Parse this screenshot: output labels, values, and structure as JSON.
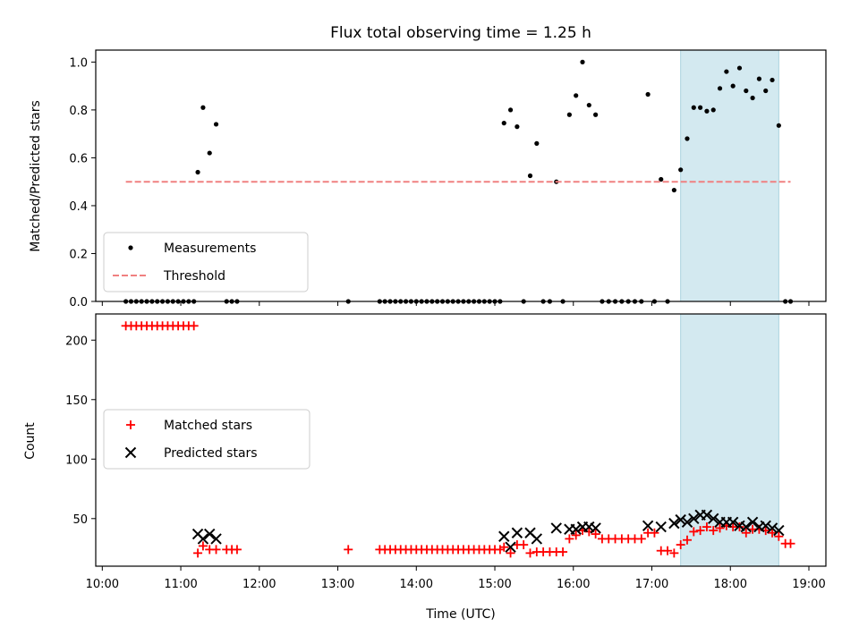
{
  "chart_data": [
    {
      "type": "scatter",
      "panel": "top",
      "title": "Flux total observing time = 1.25 h",
      "ylabel": "Matched/Predicted stars",
      "xlabel": "",
      "xlim": [
        "09:55",
        "19:13"
      ],
      "ylim": [
        0,
        1.05
      ],
      "xticks": [
        "10:00",
        "11:00",
        "12:00",
        "13:00",
        "14:00",
        "15:00",
        "16:00",
        "17:00",
        "18:00",
        "19:00"
      ],
      "yticks": [
        "0.0",
        "0.2",
        "0.4",
        "0.6",
        "0.8",
        "1.0"
      ],
      "highlight_span": [
        "17:22",
        "18:37"
      ],
      "highlight_color": "#d3e9f0",
      "legend": {
        "placement": "lower-left",
        "entries": [
          "Measurements",
          "Threshold"
        ]
      },
      "series": [
        {
          "name": "Measurements",
          "color": "#000000",
          "marker": "dot",
          "points": [
            [
              "10:18",
              0
            ],
            [
              "10:22",
              0
            ],
            [
              "10:26",
              0
            ],
            [
              "10:30",
              0
            ],
            [
              "10:34",
              0
            ],
            [
              "10:38",
              0
            ],
            [
              "10:42",
              0
            ],
            [
              "10:46",
              0
            ],
            [
              "10:50",
              0
            ],
            [
              "10:54",
              0
            ],
            [
              "10:58",
              0
            ],
            [
              "11:02",
              0
            ],
            [
              "11:06",
              0
            ],
            [
              "11:10",
              0
            ],
            [
              "11:13",
              0.54
            ],
            [
              "11:17",
              0.81
            ],
            [
              "11:22",
              0.62
            ],
            [
              "11:27",
              0.74
            ],
            [
              "11:35",
              0
            ],
            [
              "11:39",
              0
            ],
            [
              "11:43",
              0
            ],
            [
              "13:08",
              0
            ],
            [
              "13:32",
              0
            ],
            [
              "13:36",
              0
            ],
            [
              "13:40",
              0
            ],
            [
              "13:44",
              0
            ],
            [
              "13:48",
              0
            ],
            [
              "13:52",
              0
            ],
            [
              "13:56",
              0
            ],
            [
              "14:00",
              0
            ],
            [
              "14:04",
              0
            ],
            [
              "14:08",
              0
            ],
            [
              "14:12",
              0
            ],
            [
              "14:16",
              0
            ],
            [
              "14:20",
              0
            ],
            [
              "14:24",
              0
            ],
            [
              "14:28",
              0
            ],
            [
              "14:32",
              0
            ],
            [
              "14:36",
              0
            ],
            [
              "14:40",
              0
            ],
            [
              "14:44",
              0
            ],
            [
              "14:48",
              0
            ],
            [
              "14:52",
              0
            ],
            [
              "14:56",
              0
            ],
            [
              "15:00",
              0
            ],
            [
              "15:04",
              0
            ],
            [
              "15:07",
              0.745
            ],
            [
              "15:12",
              0.8
            ],
            [
              "15:17",
              0.73
            ],
            [
              "15:22",
              0
            ],
            [
              "15:27",
              0.525
            ],
            [
              "15:32",
              0.66
            ],
            [
              "15:37",
              0
            ],
            [
              "15:42",
              0
            ],
            [
              "15:47",
              0.5
            ],
            [
              "15:52",
              0
            ],
            [
              "15:57",
              0.78
            ],
            [
              "16:02",
              0.86
            ],
            [
              "16:07",
              1.0
            ],
            [
              "16:12",
              0.82
            ],
            [
              "16:17",
              0.78
            ],
            [
              "16:22",
              0
            ],
            [
              "16:27",
              0
            ],
            [
              "16:32",
              0
            ],
            [
              "16:37",
              0
            ],
            [
              "16:42",
              0
            ],
            [
              "16:47",
              0
            ],
            [
              "16:52",
              0
            ],
            [
              "16:57",
              0.865
            ],
            [
              "17:02",
              0
            ],
            [
              "17:07",
              0.51
            ],
            [
              "17:12",
              0
            ],
            [
              "17:17",
              0.465
            ],
            [
              "17:22",
              0.55
            ],
            [
              "17:27",
              0.68
            ],
            [
              "17:32",
              0.81
            ],
            [
              "17:37",
              0.81
            ],
            [
              "17:42",
              0.795
            ],
            [
              "17:47",
              0.8
            ],
            [
              "17:52",
              0.89
            ],
            [
              "17:57",
              0.96
            ],
            [
              "18:02",
              0.9
            ],
            [
              "18:07",
              0.975
            ],
            [
              "18:12",
              0.88
            ],
            [
              "18:17",
              0.85
            ],
            [
              "18:22",
              0.93
            ],
            [
              "18:27",
              0.88
            ],
            [
              "18:32",
              0.925
            ],
            [
              "18:37",
              0.735
            ],
            [
              "18:42",
              0
            ],
            [
              "18:46",
              0
            ]
          ]
        },
        {
          "name": "Threshold",
          "color": "#f08080",
          "style": "dashed",
          "points": [
            [
              "10:18",
              0.5
            ],
            [
              "18:46",
              0.5
            ]
          ]
        }
      ]
    },
    {
      "type": "scatter",
      "panel": "bottom",
      "title": "",
      "ylabel": "Count",
      "xlabel": "Time (UTC)",
      "xlim": [
        "09:55",
        "19:13"
      ],
      "ylim": [
        10,
        222
      ],
      "xticks": [
        "10:00",
        "11:00",
        "12:00",
        "13:00",
        "14:00",
        "15:00",
        "16:00",
        "17:00",
        "18:00",
        "19:00"
      ],
      "yticks": [
        "50",
        "100",
        "150",
        "200"
      ],
      "highlight_span": [
        "17:22",
        "18:37"
      ],
      "highlight_color": "#d3e9f0",
      "legend": {
        "placement": "center-left",
        "entries": [
          "Matched stars",
          "Predicted stars"
        ]
      },
      "series": [
        {
          "name": "Matched stars",
          "color": "#ff0000",
          "marker": "plus",
          "points": [
            [
              "10:18",
              212
            ],
            [
              "10:22",
              212
            ],
            [
              "10:26",
              212
            ],
            [
              "10:30",
              212
            ],
            [
              "10:34",
              212
            ],
            [
              "10:38",
              212
            ],
            [
              "10:42",
              212
            ],
            [
              "10:46",
              212
            ],
            [
              "10:50",
              212
            ],
            [
              "10:54",
              212
            ],
            [
              "10:58",
              212
            ],
            [
              "11:02",
              212
            ],
            [
              "11:06",
              212
            ],
            [
              "11:10",
              212
            ],
            [
              "11:13",
              21
            ],
            [
              "11:17",
              27
            ],
            [
              "11:22",
              24
            ],
            [
              "11:27",
              24
            ],
            [
              "11:35",
              24
            ],
            [
              "11:39",
              24
            ],
            [
              "11:43",
              24
            ],
            [
              "13:08",
              24
            ],
            [
              "13:32",
              24
            ],
            [
              "13:36",
              24
            ],
            [
              "13:40",
              24
            ],
            [
              "13:44",
              24
            ],
            [
              "13:48",
              24
            ],
            [
              "13:52",
              24
            ],
            [
              "13:56",
              24
            ],
            [
              "14:00",
              24
            ],
            [
              "14:04",
              24
            ],
            [
              "14:08",
              24
            ],
            [
              "14:12",
              24
            ],
            [
              "14:16",
              24
            ],
            [
              "14:20",
              24
            ],
            [
              "14:24",
              24
            ],
            [
              "14:28",
              24
            ],
            [
              "14:32",
              24
            ],
            [
              "14:36",
              24
            ],
            [
              "14:40",
              24
            ],
            [
              "14:44",
              24
            ],
            [
              "14:48",
              24
            ],
            [
              "14:52",
              24
            ],
            [
              "14:56",
              24
            ],
            [
              "15:00",
              24
            ],
            [
              "15:04",
              24
            ],
            [
              "15:07",
              26
            ],
            [
              "15:12",
              21
            ],
            [
              "15:17",
              28
            ],
            [
              "15:22",
              28
            ],
            [
              "15:27",
              21
            ],
            [
              "15:32",
              22
            ],
            [
              "15:37",
              22
            ],
            [
              "15:42",
              22
            ],
            [
              "15:47",
              22
            ],
            [
              "15:52",
              22
            ],
            [
              "15:57",
              33
            ],
            [
              "16:02",
              36
            ],
            [
              "16:07",
              40
            ],
            [
              "16:12",
              39
            ],
            [
              "16:17",
              37
            ],
            [
              "16:22",
              33
            ],
            [
              "16:27",
              33
            ],
            [
              "16:32",
              33
            ],
            [
              "16:37",
              33
            ],
            [
              "16:42",
              33
            ],
            [
              "16:47",
              33
            ],
            [
              "16:52",
              33
            ],
            [
              "16:57",
              38
            ],
            [
              "17:02",
              38
            ],
            [
              "17:07",
              23
            ],
            [
              "17:12",
              23
            ],
            [
              "17:17",
              21
            ],
            [
              "17:22",
              28
            ],
            [
              "17:27",
              32
            ],
            [
              "17:32",
              39
            ],
            [
              "17:37",
              40
            ],
            [
              "17:42",
              43
            ],
            [
              "17:47",
              40
            ],
            [
              "17:52",
              42
            ],
            [
              "17:57",
              44
            ],
            [
              "18:02",
              43
            ],
            [
              "18:07",
              43
            ],
            [
              "18:12",
              38
            ],
            [
              "18:17",
              41
            ],
            [
              "18:22",
              41
            ],
            [
              "18:27",
              40
            ],
            [
              "18:32",
              38
            ],
            [
              "18:37",
              35
            ],
            [
              "18:42",
              29
            ],
            [
              "18:46",
              29
            ]
          ]
        },
        {
          "name": "Predicted stars",
          "color": "#000000",
          "marker": "x",
          "points": [
            [
              "11:13",
              37
            ],
            [
              "11:17",
              33
            ],
            [
              "11:22",
              37
            ],
            [
              "11:27",
              33
            ],
            [
              "15:07",
              35
            ],
            [
              "15:12",
              26
            ],
            [
              "15:17",
              38
            ],
            [
              "15:27",
              38
            ],
            [
              "15:32",
              33
            ],
            [
              "15:47",
              42
            ],
            [
              "15:57",
              41
            ],
            [
              "16:02",
              41
            ],
            [
              "16:07",
              43
            ],
            [
              "16:12",
              43
            ],
            [
              "16:17",
              42
            ],
            [
              "16:57",
              44
            ],
            [
              "17:07",
              43
            ],
            [
              "17:17",
              46
            ],
            [
              "17:22",
              49
            ],
            [
              "17:27",
              47
            ],
            [
              "17:32",
              50
            ],
            [
              "17:37",
              53
            ],
            [
              "17:42",
              53
            ],
            [
              "17:47",
              50
            ],
            [
              "17:52",
              47
            ],
            [
              "17:57",
              47
            ],
            [
              "18:02",
              47
            ],
            [
              "18:07",
              44
            ],
            [
              "18:12",
              43
            ],
            [
              "18:17",
              47
            ],
            [
              "18:22",
              43
            ],
            [
              "18:27",
              44
            ],
            [
              "18:32",
              42
            ],
            [
              "18:37",
              40
            ]
          ]
        }
      ]
    }
  ]
}
